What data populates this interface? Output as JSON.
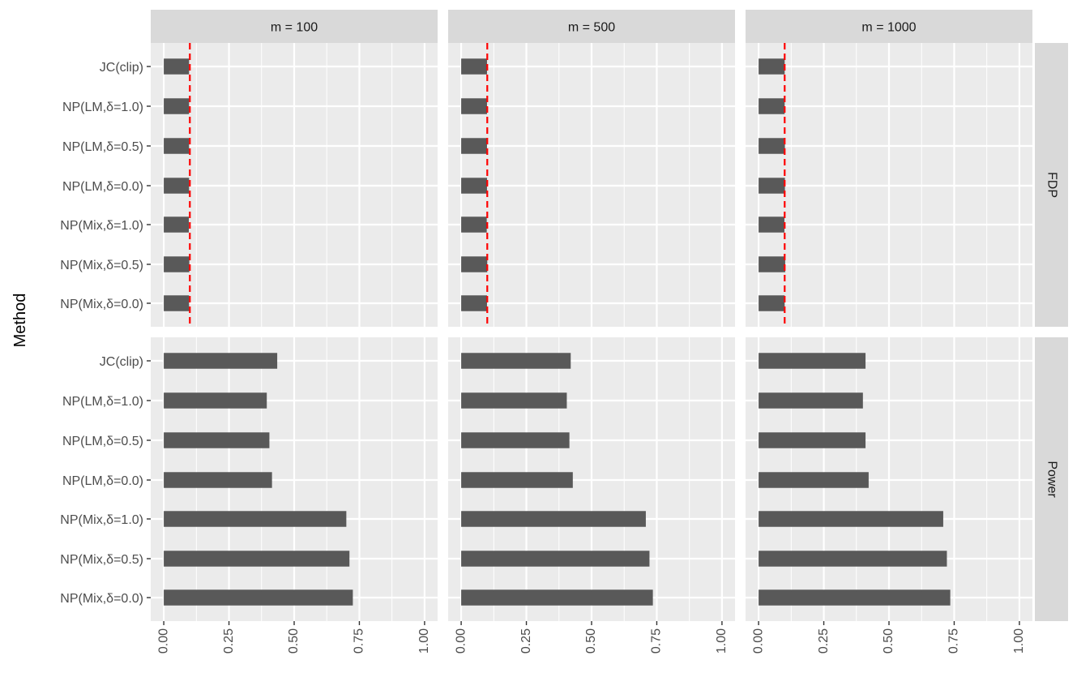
{
  "chart_data": {
    "type": "bar",
    "orientation": "horizontal",
    "ylabel": "Method",
    "xlabel": "",
    "xlim": [
      0,
      1
    ],
    "x_ticks": [
      "0.00",
      "0.25",
      "0.50",
      "0.75",
      "1.00"
    ],
    "x_tick_values": [
      0,
      0.25,
      0.5,
      0.75,
      1.0
    ],
    "categories": [
      "JC(clip)",
      "NP(LM,δ=1.0)",
      "NP(LM,δ=0.5)",
      "NP(LM,δ=0.0)",
      "NP(Mix,δ=1.0)",
      "NP(Mix,δ=0.5)",
      "NP(Mix,δ=0.0)"
    ],
    "facet_columns": [
      "m = 100",
      "m = 500",
      "m = 1000"
    ],
    "facet_rows": [
      "FDP",
      "Power"
    ],
    "reference_line": {
      "facet_row": "FDP",
      "value": 0.1,
      "style": "dashed",
      "color": "#ff0000"
    },
    "bar_color": "#595959",
    "panel_background": "#ebebeb",
    "strip_background": "#d9d9d9",
    "grid": true,
    "panels": [
      {
        "column": "m = 100",
        "row": "FDP",
        "values": [
          0.097,
          0.097,
          0.097,
          0.097,
          0.096,
          0.098,
          0.097
        ]
      },
      {
        "column": "m = 500",
        "row": "FDP",
        "values": [
          0.099,
          0.099,
          0.099,
          0.099,
          0.098,
          0.1,
          0.099
        ]
      },
      {
        "column": "m = 1000",
        "row": "FDP",
        "values": [
          0.1,
          0.1,
          0.101,
          0.101,
          0.099,
          0.102,
          0.1
        ]
      },
      {
        "column": "m = 100",
        "row": "Power",
        "values": [
          0.435,
          0.395,
          0.405,
          0.415,
          0.7,
          0.712,
          0.725
        ]
      },
      {
        "column": "m = 500",
        "row": "Power",
        "values": [
          0.42,
          0.405,
          0.415,
          0.428,
          0.708,
          0.722,
          0.735
        ]
      },
      {
        "column": "m = 1000",
        "row": "Power",
        "values": [
          0.41,
          0.4,
          0.41,
          0.422,
          0.708,
          0.722,
          0.735
        ]
      }
    ]
  }
}
